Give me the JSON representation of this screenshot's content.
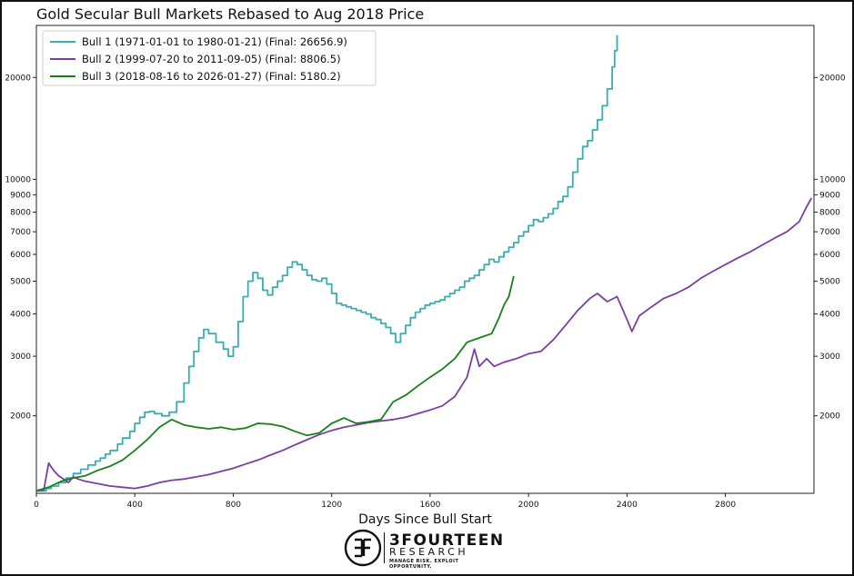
{
  "chart_data": {
    "type": "line",
    "title": "Gold Secular Bull Markets Rebased to Aug 2018 Price",
    "xlabel": "Days Since Bull Start",
    "ylabel": "",
    "xlim": [
      0,
      3160
    ],
    "ylim": [
      1180,
      28500
    ],
    "yscale": "log",
    "x_ticks": [
      0,
      400,
      800,
      1200,
      1600,
      2000,
      2400,
      2800
    ],
    "x_tick_labels": [
      "0",
      "400",
      "800",
      "1200",
      "1600",
      "2000",
      "2400",
      "2800"
    ],
    "y_ticks": [
      2000,
      3000,
      4000,
      5000,
      6000,
      7000,
      8000,
      9000,
      10000,
      20000
    ],
    "y_tick_labels": [
      "2000",
      "3000",
      "4000",
      "5000",
      "6000",
      "7000",
      "8000",
      "9000",
      "10000",
      "20000"
    ],
    "legend_position": "top-left",
    "series": [
      {
        "name": "Bull 1 (1971-01-01 to 1980-01-21) (Final: 26656.9)",
        "color": "#3aadb0",
        "step": true,
        "points": [
          [
            0,
            1200
          ],
          [
            40,
            1220
          ],
          [
            60,
            1240
          ],
          [
            90,
            1270
          ],
          [
            120,
            1310
          ],
          [
            150,
            1350
          ],
          [
            180,
            1390
          ],
          [
            210,
            1430
          ],
          [
            240,
            1470
          ],
          [
            260,
            1500
          ],
          [
            280,
            1540
          ],
          [
            300,
            1580
          ],
          [
            330,
            1650
          ],
          [
            350,
            1720
          ],
          [
            380,
            1800
          ],
          [
            400,
            1900
          ],
          [
            420,
            1980
          ],
          [
            440,
            2050
          ],
          [
            460,
            2060
          ],
          [
            480,
            2030
          ],
          [
            510,
            2000
          ],
          [
            540,
            2050
          ],
          [
            570,
            2200
          ],
          [
            600,
            2500
          ],
          [
            620,
            2800
          ],
          [
            640,
            3100
          ],
          [
            660,
            3400
          ],
          [
            680,
            3600
          ],
          [
            700,
            3500
          ],
          [
            730,
            3300
          ],
          [
            760,
            3150
          ],
          [
            780,
            3000
          ],
          [
            800,
            3200
          ],
          [
            820,
            3800
          ],
          [
            840,
            4500
          ],
          [
            860,
            5000
          ],
          [
            880,
            5300
          ],
          [
            900,
            5100
          ],
          [
            920,
            4700
          ],
          [
            940,
            4550
          ],
          [
            960,
            4800
          ],
          [
            980,
            5000
          ],
          [
            1000,
            5200
          ],
          [
            1020,
            5500
          ],
          [
            1040,
            5700
          ],
          [
            1060,
            5600
          ],
          [
            1080,
            5400
          ],
          [
            1100,
            5200
          ],
          [
            1120,
            5050
          ],
          [
            1140,
            5000
          ],
          [
            1160,
            5100
          ],
          [
            1180,
            4900
          ],
          [
            1200,
            4600
          ],
          [
            1220,
            4300
          ],
          [
            1240,
            4250
          ],
          [
            1260,
            4200
          ],
          [
            1280,
            4150
          ],
          [
            1300,
            4100
          ],
          [
            1320,
            4050
          ],
          [
            1340,
            4000
          ],
          [
            1360,
            3900
          ],
          [
            1380,
            3850
          ],
          [
            1400,
            3750
          ],
          [
            1420,
            3650
          ],
          [
            1440,
            3500
          ],
          [
            1460,
            3300
          ],
          [
            1480,
            3500
          ],
          [
            1500,
            3700
          ],
          [
            1520,
            3900
          ],
          [
            1540,
            4050
          ],
          [
            1560,
            4150
          ],
          [
            1580,
            4250
          ],
          [
            1600,
            4300
          ],
          [
            1620,
            4350
          ],
          [
            1640,
            4400
          ],
          [
            1660,
            4500
          ],
          [
            1680,
            4600
          ],
          [
            1700,
            4700
          ],
          [
            1720,
            4800
          ],
          [
            1740,
            5000
          ],
          [
            1760,
            5100
          ],
          [
            1780,
            5200
          ],
          [
            1800,
            5400
          ],
          [
            1820,
            5600
          ],
          [
            1840,
            5800
          ],
          [
            1860,
            5700
          ],
          [
            1880,
            5900
          ],
          [
            1900,
            6100
          ],
          [
            1920,
            6300
          ],
          [
            1940,
            6500
          ],
          [
            1960,
            6800
          ],
          [
            1980,
            7000
          ],
          [
            2000,
            7300
          ],
          [
            2020,
            7600
          ],
          [
            2040,
            7500
          ],
          [
            2060,
            7700
          ],
          [
            2080,
            7900
          ],
          [
            2100,
            8200
          ],
          [
            2120,
            8600
          ],
          [
            2140,
            8900
          ],
          [
            2160,
            9500
          ],
          [
            2180,
            10500
          ],
          [
            2200,
            11500
          ],
          [
            2220,
            12500
          ],
          [
            2240,
            13000
          ],
          [
            2260,
            14000
          ],
          [
            2280,
            15000
          ],
          [
            2300,
            16500
          ],
          [
            2320,
            18500
          ],
          [
            2340,
            21500
          ],
          [
            2350,
            24000
          ],
          [
            2360,
            26656.9
          ]
        ]
      },
      {
        "name": "Bull 2 (1999-07-20 to 2011-09-05) (Final: 8806.5)",
        "color": "#7b3fa0",
        "step": false,
        "points": [
          [
            0,
            1200
          ],
          [
            30,
            1205
          ],
          [
            50,
            1450
          ],
          [
            70,
            1380
          ],
          [
            90,
            1330
          ],
          [
            110,
            1300
          ],
          [
            130,
            1270
          ],
          [
            150,
            1320
          ],
          [
            170,
            1300
          ],
          [
            200,
            1280
          ],
          [
            250,
            1260
          ],
          [
            300,
            1240
          ],
          [
            350,
            1230
          ],
          [
            400,
            1220
          ],
          [
            450,
            1240
          ],
          [
            500,
            1270
          ],
          [
            550,
            1290
          ],
          [
            600,
            1300
          ],
          [
            650,
            1320
          ],
          [
            700,
            1340
          ],
          [
            750,
            1370
          ],
          [
            800,
            1400
          ],
          [
            850,
            1440
          ],
          [
            900,
            1480
          ],
          [
            950,
            1530
          ],
          [
            1000,
            1580
          ],
          [
            1050,
            1640
          ],
          [
            1100,
            1700
          ],
          [
            1150,
            1760
          ],
          [
            1200,
            1810
          ],
          [
            1250,
            1850
          ],
          [
            1300,
            1880
          ],
          [
            1350,
            1910
          ],
          [
            1400,
            1930
          ],
          [
            1450,
            1950
          ],
          [
            1500,
            1980
          ],
          [
            1550,
            2030
          ],
          [
            1600,
            2080
          ],
          [
            1650,
            2140
          ],
          [
            1700,
            2280
          ],
          [
            1750,
            2600
          ],
          [
            1780,
            3150
          ],
          [
            1800,
            2800
          ],
          [
            1830,
            2950
          ],
          [
            1860,
            2800
          ],
          [
            1900,
            2880
          ],
          [
            1950,
            2950
          ],
          [
            2000,
            3050
          ],
          [
            2050,
            3100
          ],
          [
            2100,
            3350
          ],
          [
            2150,
            3700
          ],
          [
            2200,
            4100
          ],
          [
            2250,
            4450
          ],
          [
            2280,
            4600
          ],
          [
            2320,
            4350
          ],
          [
            2360,
            4500
          ],
          [
            2400,
            3850
          ],
          [
            2420,
            3550
          ],
          [
            2450,
            3950
          ],
          [
            2500,
            4200
          ],
          [
            2550,
            4450
          ],
          [
            2600,
            4600
          ],
          [
            2650,
            4800
          ],
          [
            2700,
            5100
          ],
          [
            2750,
            5350
          ],
          [
            2800,
            5600
          ],
          [
            2850,
            5850
          ],
          [
            2900,
            6100
          ],
          [
            2950,
            6400
          ],
          [
            3000,
            6700
          ],
          [
            3050,
            7000
          ],
          [
            3100,
            7500
          ],
          [
            3130,
            8300
          ],
          [
            3150,
            8806.5
          ]
        ]
      },
      {
        "name": "Bull 3 (2018-08-16 to 2026-01-27) (Final: 5180.2)",
        "color": "#188018",
        "step": false,
        "points": [
          [
            0,
            1200
          ],
          [
            50,
            1230
          ],
          [
            100,
            1280
          ],
          [
            150,
            1310
          ],
          [
            200,
            1330
          ],
          [
            250,
            1380
          ],
          [
            300,
            1420
          ],
          [
            350,
            1480
          ],
          [
            400,
            1580
          ],
          [
            450,
            1700
          ],
          [
            500,
            1850
          ],
          [
            550,
            1950
          ],
          [
            600,
            1880
          ],
          [
            650,
            1850
          ],
          [
            700,
            1830
          ],
          [
            750,
            1850
          ],
          [
            800,
            1820
          ],
          [
            850,
            1840
          ],
          [
            900,
            1900
          ],
          [
            950,
            1890
          ],
          [
            1000,
            1860
          ],
          [
            1050,
            1800
          ],
          [
            1100,
            1750
          ],
          [
            1150,
            1780
          ],
          [
            1200,
            1900
          ],
          [
            1250,
            1970
          ],
          [
            1300,
            1900
          ],
          [
            1350,
            1920
          ],
          [
            1400,
            1950
          ],
          [
            1450,
            2200
          ],
          [
            1500,
            2300
          ],
          [
            1550,
            2450
          ],
          [
            1600,
            2600
          ],
          [
            1650,
            2750
          ],
          [
            1700,
            2950
          ],
          [
            1750,
            3300
          ],
          [
            1800,
            3400
          ],
          [
            1850,
            3500
          ],
          [
            1880,
            3900
          ],
          [
            1900,
            4250
          ],
          [
            1920,
            4500
          ],
          [
            1940,
            5180.2
          ]
        ]
      }
    ]
  },
  "logo": {
    "brand": "3FOURTEEN",
    "sub": "RESEARCH",
    "tagline": "MANAGE RISK. EXPLOIT OPPORTUNITY."
  }
}
